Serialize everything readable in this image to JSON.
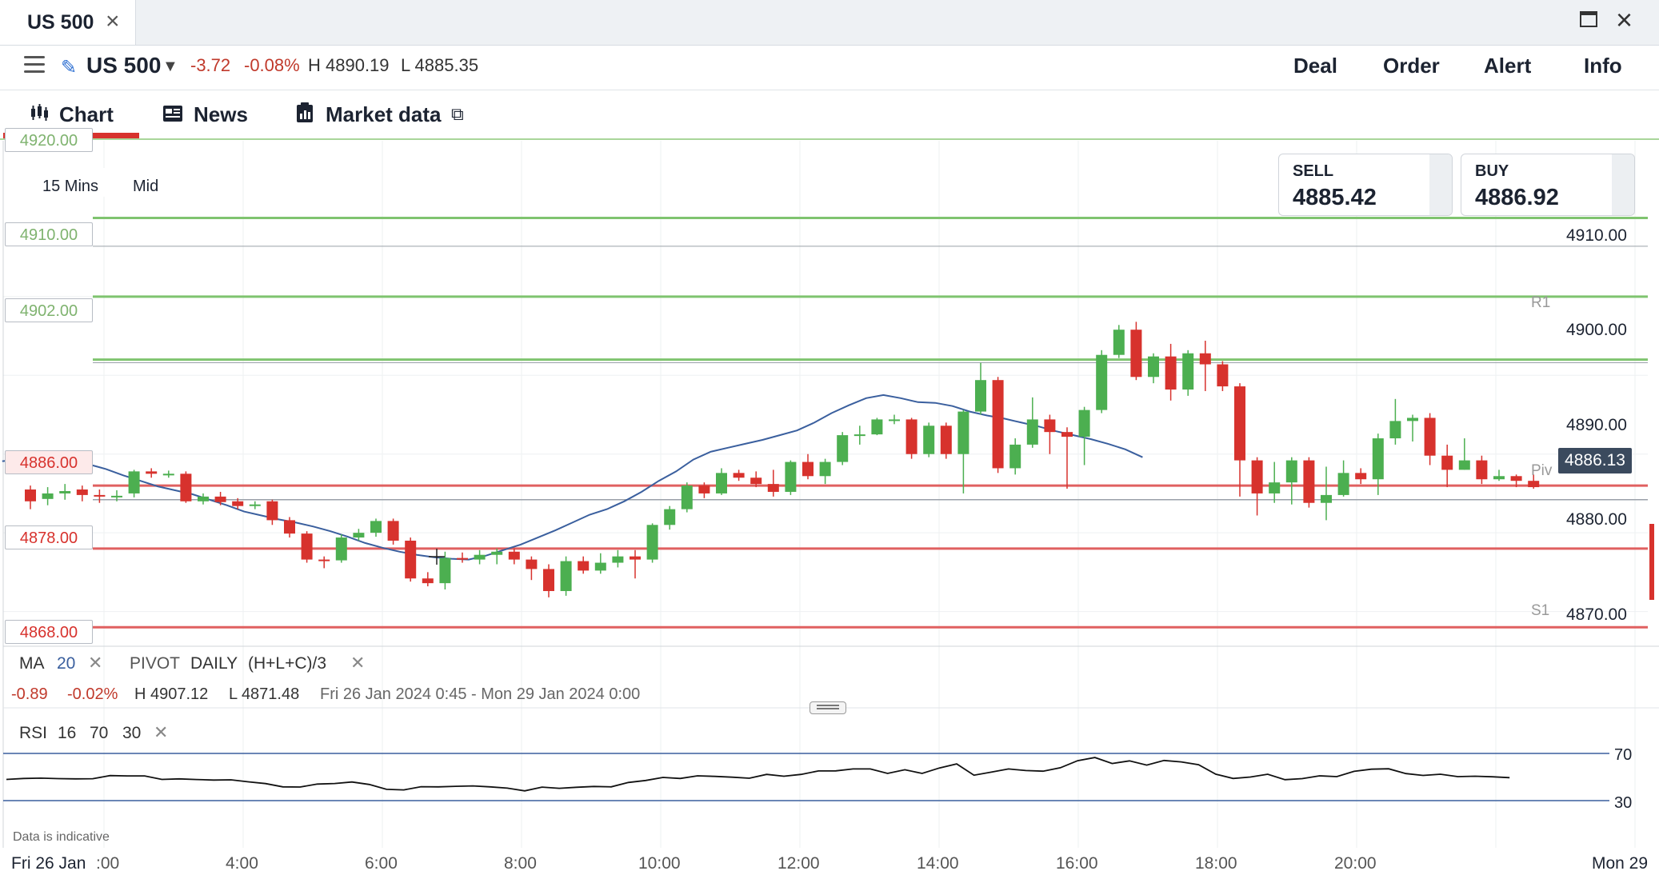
{
  "tab": {
    "title": "US 500"
  },
  "instrument": {
    "name": "US 500",
    "change": "-3.72",
    "change_pct": "-0.08%",
    "high": "H 4890.19",
    "low": "L 4885.35"
  },
  "actions": {
    "deal": "Deal",
    "order": "Order",
    "alert": "Alert",
    "info": "Info"
  },
  "chart_tabs": {
    "chart": "Chart",
    "news": "News",
    "market": "Market data"
  },
  "chart_settings": {
    "interval": "15 Mins",
    "price_type": "Mid"
  },
  "quote": {
    "sell_label": "SELL",
    "sell": "4885.42",
    "buy_label": "BUY",
    "buy": "4886.92"
  },
  "current_price": "4886.13",
  "pivots": {
    "r1": "R1",
    "piv": "Piv",
    "s1": "S1"
  },
  "indicators": {
    "ma_label": "MA",
    "ma_period": "20",
    "pivot_label": "PIVOT",
    "pivot_period": "DAILY",
    "pivot_formula": "(H+L+C)/3",
    "stat_change": "-0.89",
    "stat_pct": "-0.02%",
    "stat_high": "H 4907.12",
    "stat_low": "L 4871.48",
    "stat_range": "Fri 26 Jan 2024 0:45 - Mon 29 Jan 2024 0:00",
    "rsi_label": "RSI",
    "rsi_period": "16",
    "rsi_upper": "70",
    "rsi_lower": "30"
  },
  "disclaimer": "Data is indicative",
  "colors": {
    "up": "#4caf50",
    "down": "#d7322d",
    "ma": "#3a5f9e",
    "accent": "#d7322d",
    "green_line": "#7fc46f",
    "red_line": "#e06060"
  },
  "chart_data": {
    "type": "candlestick",
    "y_ticks": [
      "4910.00",
      "4900.00",
      "4890.00",
      "4880.00",
      "4870.00"
    ],
    "x_ticks": [
      "Fri 26 Jan",
      ":00",
      "4:00",
      "6:00",
      "8:00",
      "10:00",
      "12:00",
      "14:00",
      "16:00",
      "18:00",
      "20:00",
      "Mon 29"
    ],
    "horizontal_lines": [
      {
        "label": "4920.00",
        "value": 4920,
        "color": "green"
      },
      {
        "label": "4910.00",
        "value": 4910,
        "color": "green"
      },
      {
        "label": "4902.00",
        "value": 4902,
        "color": "green"
      },
      {
        "label": "4886.00",
        "value": 4886,
        "color": "red"
      },
      {
        "label": "4878.00",
        "value": 4878,
        "color": "red"
      },
      {
        "label": "4868.00",
        "value": 4868,
        "color": "red"
      }
    ],
    "ylim": [
      4866.4,
      4929.8
    ],
    "candles": [
      [
        4885.5,
        4884.0,
        4886.0,
        4883.0
      ],
      [
        4884.3,
        4885.0,
        4885.8,
        4883.5
      ],
      [
        4885.0,
        4885.3,
        4886.2,
        4884.2
      ],
      [
        4885.5,
        4884.8,
        4886.0,
        4884.0
      ],
      [
        4884.8,
        4884.6,
        4885.5,
        4883.8
      ],
      [
        4884.6,
        4884.7,
        4885.4,
        4884.0
      ],
      [
        4885.0,
        4887.8,
        4888.0,
        4884.5
      ],
      [
        4887.8,
        4887.5,
        4888.2,
        4887.0
      ],
      [
        4887.5,
        4887.5,
        4887.9,
        4887.0
      ],
      [
        4887.5,
        4884.0,
        4887.8,
        4883.8
      ],
      [
        4884.0,
        4884.6,
        4885.0,
        4883.6
      ],
      [
        4884.6,
        4883.9,
        4885.2,
        4883.5
      ],
      [
        4884.0,
        4883.4,
        4884.4,
        4883.0
      ],
      [
        4883.4,
        4883.6,
        4884.0,
        4883.0
      ],
      [
        4884.0,
        4881.6,
        4884.2,
        4881.0
      ],
      [
        4881.6,
        4879.9,
        4882.0,
        4879.4
      ],
      [
        4879.9,
        4876.6,
        4880.2,
        4876.2
      ],
      [
        4876.6,
        4876.5,
        4877.0,
        4875.5
      ],
      [
        4876.5,
        4879.4,
        4879.8,
        4876.2
      ],
      [
        4879.4,
        4880.0,
        4880.5,
        4879.0
      ],
      [
        4880.0,
        4881.5,
        4881.8,
        4879.5
      ],
      [
        4881.5,
        4879.0,
        4881.8,
        4878.5
      ],
      [
        4879.0,
        4874.2,
        4879.4,
        4873.8
      ],
      [
        4874.2,
        4873.6,
        4875.0,
        4873.2
      ],
      [
        4873.6,
        4876.8,
        4877.6,
        4872.8
      ],
      [
        4876.8,
        4876.6,
        4877.5,
        4876.2
      ],
      [
        4876.6,
        4877.2,
        4877.8,
        4876.0
      ],
      [
        4877.2,
        4877.6,
        4878.0,
        4876.0
      ],
      [
        4877.6,
        4876.6,
        4878.0,
        4876.0
      ],
      [
        4876.6,
        4875.4,
        4877.0,
        4874.0
      ],
      [
        4875.4,
        4872.6,
        4876.0,
        4871.8
      ],
      [
        4872.6,
        4876.4,
        4877.0,
        4872.0
      ],
      [
        4876.4,
        4875.2,
        4877.0,
        4874.8
      ],
      [
        4875.2,
        4876.2,
        4877.4,
        4874.8
      ],
      [
        4876.2,
        4877.0,
        4877.8,
        4875.6
      ],
      [
        4877.0,
        4876.6,
        4877.8,
        4874.2
      ],
      [
        4876.6,
        4881.0,
        4881.2,
        4876.2
      ],
      [
        4881.0,
        4883.0,
        4883.4,
        4880.4
      ],
      [
        4883.0,
        4886.0,
        4886.4,
        4882.6
      ],
      [
        4886.0,
        4885.0,
        4886.4,
        4884.4
      ],
      [
        4885.0,
        4887.6,
        4888.2,
        4884.8
      ],
      [
        4887.6,
        4887.0,
        4888.0,
        4886.6
      ],
      [
        4887.0,
        4886.2,
        4887.8,
        4885.8
      ],
      [
        4886.2,
        4885.2,
        4888.0,
        4884.6
      ],
      [
        4885.2,
        4889.0,
        4889.2,
        4884.8
      ],
      [
        4889.0,
        4887.2,
        4890.0,
        4886.8
      ],
      [
        4887.2,
        4889.0,
        4889.4,
        4886.2
      ],
      [
        4889.0,
        4892.4,
        4892.8,
        4888.6
      ],
      [
        4892.4,
        4892.5,
        4893.6,
        4891.2
      ],
      [
        4892.5,
        4894.4,
        4894.6,
        4892.4
      ],
      [
        4894.4,
        4894.4,
        4895.0,
        4893.8
      ],
      [
        4894.4,
        4890.0,
        4894.6,
        4889.4
      ],
      [
        4890.0,
        4893.6,
        4894.0,
        4889.6
      ],
      [
        4893.6,
        4890.0,
        4894.0,
        4889.4
      ],
      [
        4890.0,
        4895.4,
        4895.6,
        4885.0
      ],
      [
        4895.4,
        4899.4,
        4901.6,
        4895.0
      ],
      [
        4899.4,
        4888.2,
        4899.8,
        4887.6
      ],
      [
        4888.2,
        4891.2,
        4892.0,
        4887.4
      ],
      [
        4891.2,
        4894.4,
        4897.2,
        4890.8
      ],
      [
        4894.4,
        4892.8,
        4895.0,
        4890.0
      ],
      [
        4892.8,
        4892.2,
        4893.4,
        4885.6
      ],
      [
        4892.2,
        4895.6,
        4896.0,
        4888.6
      ],
      [
        4895.6,
        4902.6,
        4903.2,
        4895.2
      ],
      [
        4902.6,
        4905.8,
        4906.4,
        4902.2
      ],
      [
        4905.8,
        4899.8,
        4906.8,
        4899.4
      ],
      [
        4899.8,
        4902.4,
        4902.8,
        4899.0
      ],
      [
        4902.4,
        4898.2,
        4904.0,
        4896.8
      ],
      [
        4898.2,
        4902.8,
        4903.2,
        4897.4
      ],
      [
        4902.8,
        4901.4,
        4904.4,
        4898.0
      ],
      [
        4901.4,
        4898.6,
        4901.8,
        4898.0
      ],
      [
        4898.6,
        4889.2,
        4899.0,
        4884.6
      ],
      [
        4889.2,
        4885.0,
        4889.6,
        4882.2
      ],
      [
        4885.0,
        4886.4,
        4889.0,
        4883.8
      ],
      [
        4886.4,
        4889.2,
        4889.6,
        4883.6
      ],
      [
        4889.2,
        4883.8,
        4889.6,
        4883.2
      ],
      [
        4883.8,
        4884.8,
        4888.4,
        4881.6
      ],
      [
        4884.8,
        4887.6,
        4889.2,
        4884.6
      ],
      [
        4887.6,
        4886.8,
        4888.2,
        4886.2
      ],
      [
        4886.8,
        4892.0,
        4892.6,
        4884.8
      ],
      [
        4892.0,
        4894.2,
        4897.0,
        4891.2
      ],
      [
        4894.2,
        4894.6,
        4895.0,
        4891.6
      ],
      [
        4894.6,
        4889.8,
        4895.2,
        4888.6
      ],
      [
        4889.8,
        4888.0,
        4891.2,
        4885.8
      ],
      [
        4888.0,
        4889.2,
        4892.0,
        4888.0
      ],
      [
        4889.2,
        4886.8,
        4889.8,
        4886.2
      ],
      [
        4886.8,
        4887.2,
        4888.0,
        4886.6
      ],
      [
        4887.2,
        4886.6,
        4887.4,
        4885.8
      ],
      [
        4886.6,
        4885.8,
        4887.4,
        4885.6
      ]
    ],
    "ma": [
      4889.1,
      4889.3,
      4889.6,
      4889.6,
      4889.3,
      4888.7,
      4888.1,
      4887.3,
      4886.6,
      4885.9,
      4885.4,
      4884.9,
      4884.2,
      4883.5,
      4882.7,
      4882.2,
      4881.7,
      4881.3,
      4880.8,
      4880.2,
      4879.5,
      4878.7,
      4878.1,
      4877.6,
      4877.2,
      4876.9,
      4876.7,
      4876.6,
      4877.1,
      4877.8,
      4878.5,
      4879.4,
      4880.3,
      4881.3,
      4882.3,
      4883.0,
      4884.0,
      4885.2,
      4886.6,
      4887.8,
      4889.3,
      4890.3,
      4890.8,
      4891.3,
      4891.8,
      4892.4,
      4893.0,
      4894.0,
      4895.2,
      4896.2,
      4897.1,
      4897.5,
      4897.1,
      4896.6,
      4896.5,
      4896.1,
      4895.4,
      4894.9,
      4894.5,
      4894.0,
      4893.5,
      4892.9,
      4892.4,
      4891.9,
      4891.3,
      4890.6,
      4889.6
    ],
    "ma_start_index": 0,
    "rsi": {
      "y_ticks": [
        "70",
        "30"
      ],
      "ylim": [
        20,
        80
      ]
    }
  }
}
